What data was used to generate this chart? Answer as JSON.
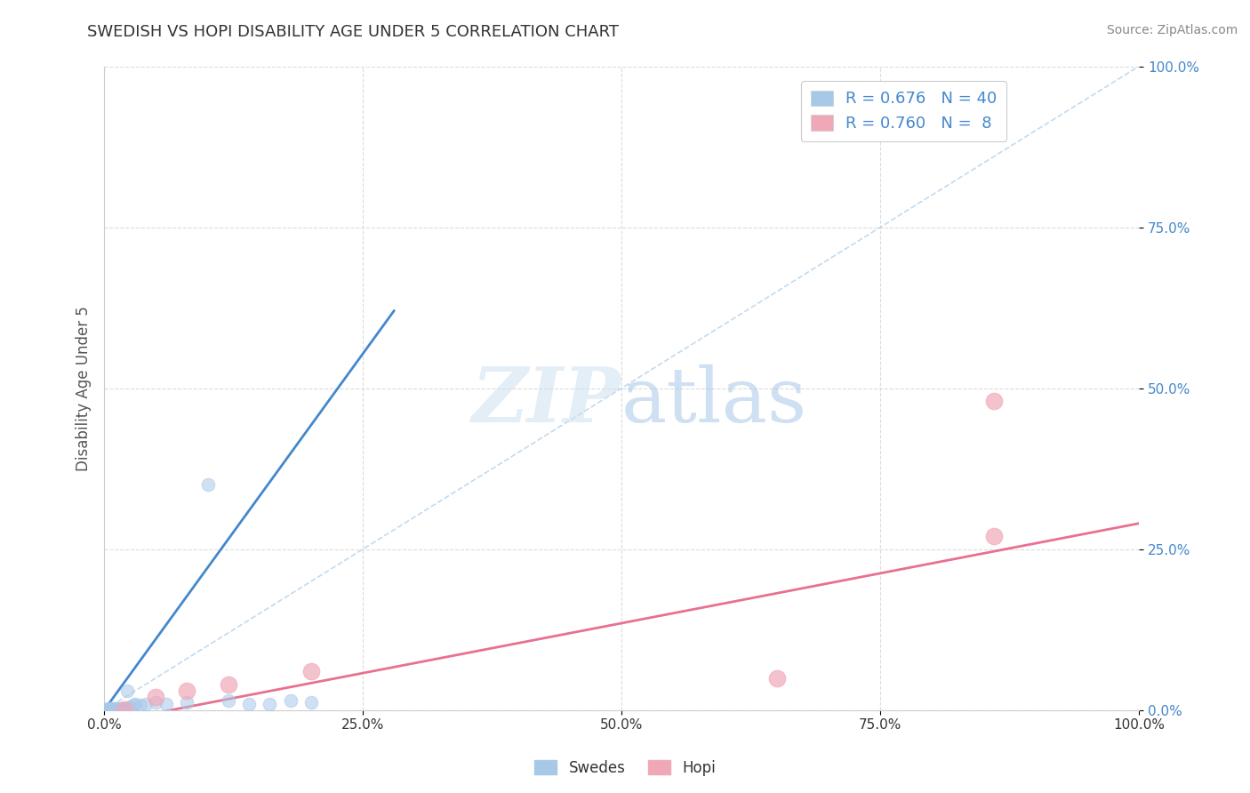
{
  "title": "SWEDISH VS HOPI DISABILITY AGE UNDER 5 CORRELATION CHART",
  "source": "Source: ZipAtlas.com",
  "ylabel": "Disability Age Under 5",
  "R_swedish": 0.676,
  "N_swedish": 40,
  "R_hopi": 0.76,
  "N_hopi": 8,
  "swedish_color": "#a8c8e8",
  "hopi_color": "#f0a8b8",
  "swedish_line_color": "#4488cc",
  "hopi_line_color": "#e87090",
  "diagonal_color": "#b8d4ec",
  "background_color": "#ffffff",
  "grid_color": "#d8d8d8",
  "legend_label_swedish": "Swedes",
  "legend_label_hopi": "Hopi",
  "sw_x": [
    0.001,
    0.002,
    0.003,
    0.004,
    0.004,
    0.005,
    0.005,
    0.006,
    0.006,
    0.007,
    0.007,
    0.008,
    0.008,
    0.009,
    0.01,
    0.01,
    0.011,
    0.012,
    0.013,
    0.014,
    0.015,
    0.016,
    0.017,
    0.018,
    0.02,
    0.022,
    0.025,
    0.028,
    0.03,
    0.035,
    0.04,
    0.05,
    0.06,
    0.08,
    0.1,
    0.12,
    0.14,
    0.16,
    0.18,
    0.2
  ],
  "sw_y": [
    0.001,
    0.001,
    0.001,
    0.001,
    0.002,
    0.001,
    0.002,
    0.001,
    0.002,
    0.002,
    0.001,
    0.002,
    0.001,
    0.001,
    0.002,
    0.001,
    0.002,
    0.001,
    0.002,
    0.001,
    0.002,
    0.001,
    0.002,
    0.001,
    0.002,
    0.03,
    0.005,
    0.008,
    0.01,
    0.008,
    0.01,
    0.012,
    0.01,
    0.012,
    0.35,
    0.015,
    0.01,
    0.01,
    0.015,
    0.012
  ],
  "sw_line_x": [
    0.0,
    0.28
  ],
  "sw_line_y": [
    0.0,
    0.62
  ],
  "hopi_x": [
    0.02,
    0.05,
    0.08,
    0.12,
    0.2,
    0.65,
    0.86,
    0.86
  ],
  "hopi_y": [
    0.001,
    0.02,
    0.03,
    0.04,
    0.06,
    0.05,
    0.48,
    0.27
  ],
  "hopi_line_x": [
    0.0,
    1.0
  ],
  "hopi_line_y": [
    -0.02,
    0.29
  ],
  "xlim": [
    0.0,
    1.0
  ],
  "ylim": [
    0.0,
    1.0
  ],
  "xticks": [
    0.0,
    0.25,
    0.5,
    0.75,
    1.0
  ],
  "yticks": [
    0.0,
    0.25,
    0.5,
    0.75,
    1.0
  ],
  "xtick_labels": [
    "0.0%",
    "25.0%",
    "50.0%",
    "75.0%",
    "100.0%"
  ],
  "ytick_labels_right": [
    "0.0%",
    "25.0%",
    "50.0%",
    "75.0%",
    "100.0%"
  ],
  "yaxis_color": "#4488cc",
  "xaxis_color": "#333333",
  "title_color": "#333333",
  "source_color": "#888888"
}
